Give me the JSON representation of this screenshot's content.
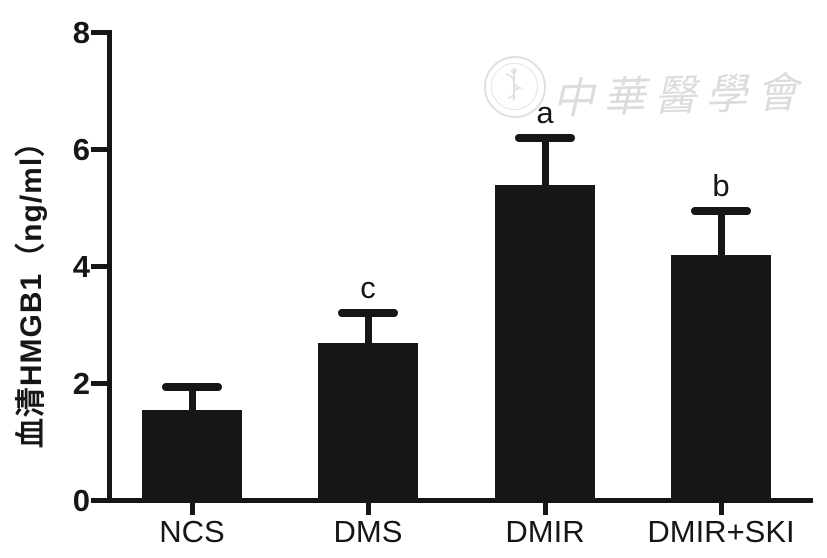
{
  "figure": {
    "watermark": {
      "seal_name": "chinese-medical-association-seal",
      "text": "中華醫學會"
    }
  },
  "chart_data": {
    "type": "bar",
    "title": "",
    "xlabel": "",
    "ylabel": "血清HMGB1（ng/ml）",
    "categories": [
      "NCS",
      "DMS",
      "DMIR",
      "DMIR+SKI"
    ],
    "values": [
      1.55,
      2.7,
      5.4,
      4.2
    ],
    "errors": [
      0.4,
      0.5,
      0.8,
      0.75
    ],
    "error_direction": "upper",
    "annotations": [
      "",
      "c",
      "a",
      "b"
    ],
    "ylim": [
      0,
      8
    ],
    "yticks": [
      0,
      2,
      4,
      6,
      8
    ],
    "bar_color": "#161616",
    "axis_color": "#161616",
    "background_color": "#ffffff",
    "grid": false,
    "legend": null
  }
}
